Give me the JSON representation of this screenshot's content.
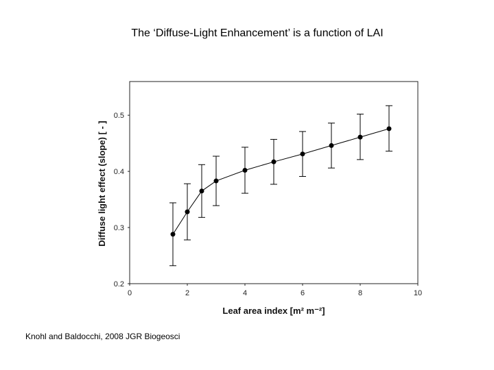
{
  "slide": {
    "title": "The ‘Diffuse-Light Enhancement’ is a function of LAI",
    "citation": "Knohl and Baldocchi, 2008 JGR Biogeosci"
  },
  "chart_data": {
    "type": "scatter",
    "title": "",
    "xlabel": "Leaf area index [m² m⁻²]",
    "ylabel": "Diffuse light effect (slope) [ - ]",
    "xlim": [
      0,
      10
    ],
    "ylim": [
      0.2,
      0.56
    ],
    "xticks": [
      0,
      2,
      4,
      6,
      8,
      10
    ],
    "yticks": [
      0.2,
      0.3,
      0.4,
      0.5
    ],
    "grid": false,
    "legend": "none",
    "line_color": "#000000",
    "series": [
      {
        "x": [
          1.5,
          2.0,
          2.5,
          3.0,
          4.0,
          5.0,
          6.0,
          7.0,
          8.0,
          9.0
        ],
        "y": [
          0.288,
          0.328,
          0.365,
          0.383,
          0.402,
          0.417,
          0.431,
          0.446,
          0.461,
          0.476
        ],
        "y_err_low": [
          0.232,
          0.278,
          0.318,
          0.339,
          0.361,
          0.377,
          0.391,
          0.406,
          0.421,
          0.436
        ],
        "y_err_high": [
          0.344,
          0.378,
          0.412,
          0.427,
          0.443,
          0.457,
          0.471,
          0.486,
          0.502,
          0.517
        ]
      }
    ]
  }
}
